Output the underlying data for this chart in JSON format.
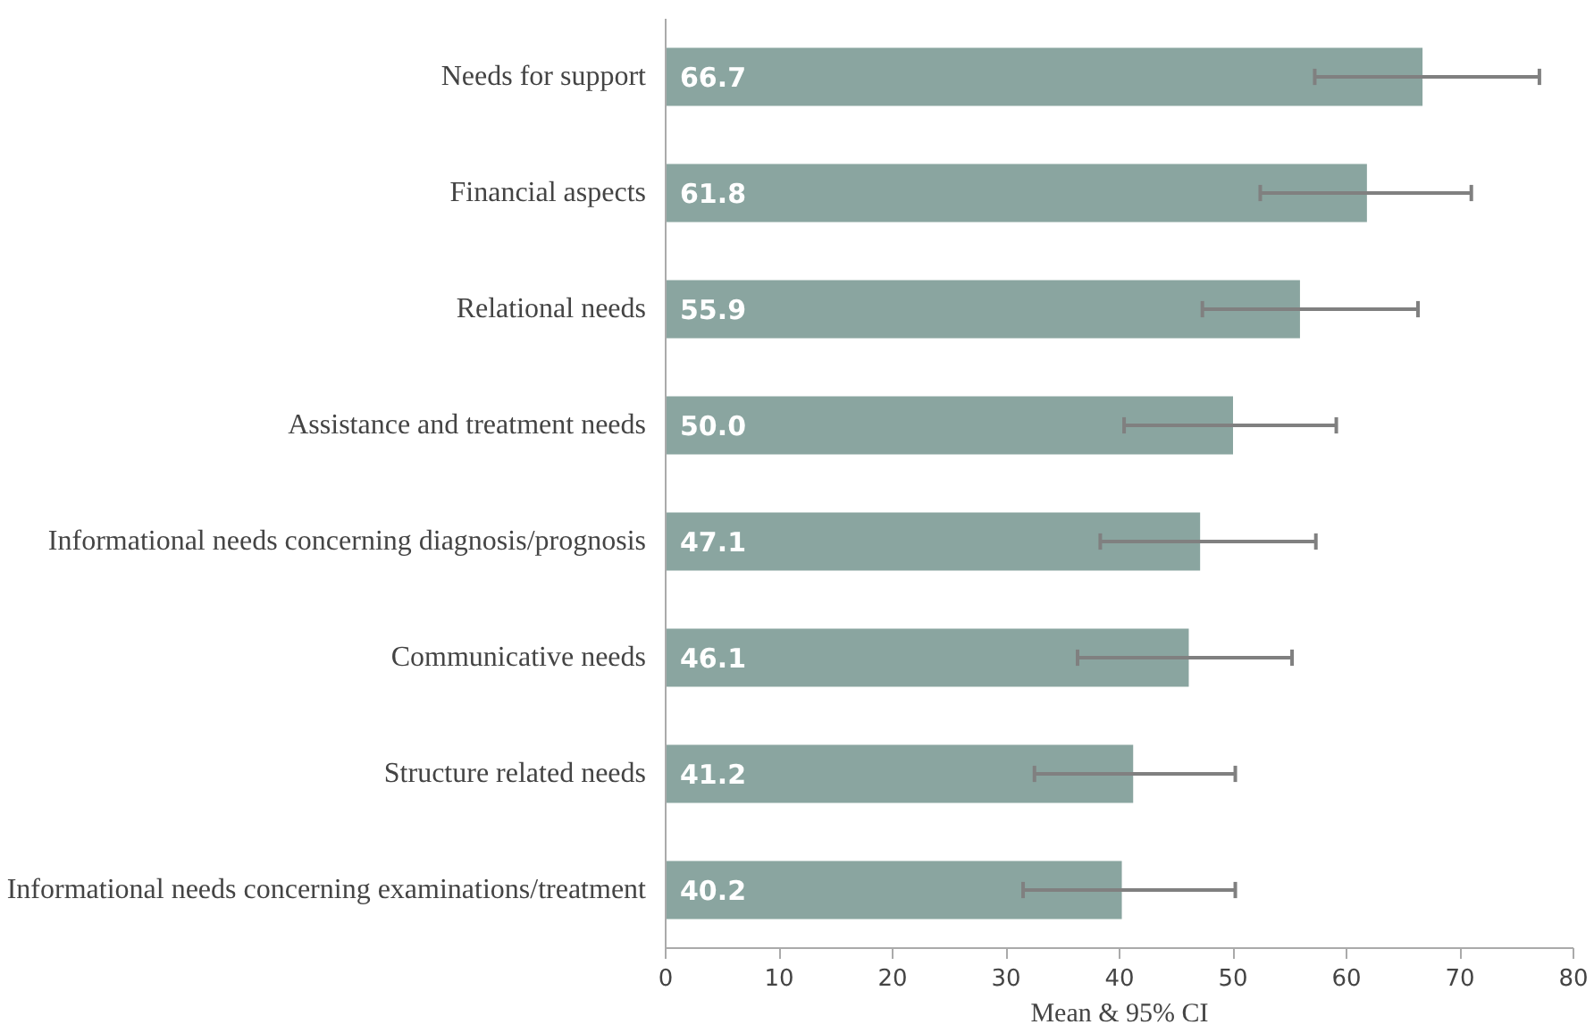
{
  "chart_data": {
    "type": "bar",
    "orientation": "horizontal",
    "xlabel": "Mean & 95% CI",
    "categories": [
      "Needs for support",
      "Financial aspects",
      "Relational needs",
      "Assistance and treatment needs",
      "Informational needs concerning diagnosis/prognosis",
      "Communicative needs",
      "Structure related needs",
      "Informational needs concerning examinations/treatment"
    ],
    "values": [
      66.7,
      61.8,
      55.9,
      50.0,
      47.1,
      46.1,
      41.2,
      40.2
    ],
    "errors": [
      [
        57.2,
        77.0
      ],
      [
        52.4,
        71.0
      ],
      [
        47.3,
        66.3
      ],
      [
        40.4,
        59.1
      ],
      [
        38.3,
        57.3
      ],
      [
        36.3,
        55.2
      ],
      [
        32.5,
        50.2
      ],
      [
        31.5,
        50.2
      ]
    ],
    "value_labels": [
      "66.7",
      "61.8",
      "55.9",
      "50.0",
      "47.1",
      "46.1",
      "41.2",
      "40.2"
    ],
    "color": "#8aa5a0",
    "grid": false,
    "xlim": [
      0,
      80
    ],
    "xticks": [
      0,
      10,
      20,
      30,
      40,
      50,
      60,
      70,
      80
    ]
  }
}
